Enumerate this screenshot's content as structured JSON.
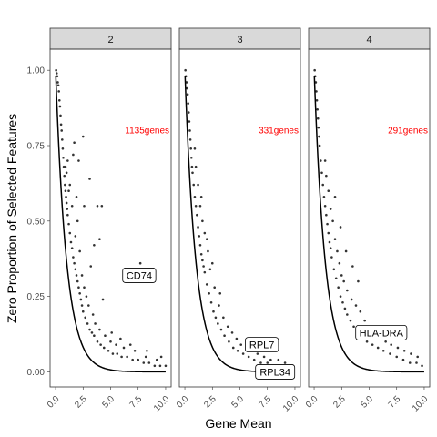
{
  "chart_data": {
    "type": "scatter",
    "xlabel": "Gene Mean",
    "ylabel": "Zero Proportion of Selected Features",
    "xlim": [
      -0.5,
      10.5
    ],
    "ylim": [
      -0.05,
      1.07
    ],
    "x_ticks": [
      0.0,
      2.5,
      5.0,
      7.5,
      10.0
    ],
    "x_tick_labels": [
      "0.0",
      "2.5",
      "5.0",
      "7.5",
      "10.0"
    ],
    "y_ticks": [
      0.0,
      0.25,
      0.5,
      0.75,
      1.0
    ],
    "y_tick_labels": [
      "0.00",
      "0.25",
      "0.50",
      "0.75",
      "1.00"
    ],
    "grid": false,
    "curve": "expected zero proportion exp(-mean)",
    "colors": {
      "points": "#333333",
      "curve": "#000000",
      "gene_count": "#ff0000",
      "strip": "#d9d9d9"
    },
    "panels": [
      {
        "strip": "2",
        "gene_count": "1135genes",
        "labels": [
          {
            "text": "CD74",
            "x": 7.6,
            "y": 0.32
          }
        ],
        "points": [
          [
            0.05,
            1.0
          ],
          [
            0.1,
            0.99
          ],
          [
            0.15,
            0.98
          ],
          [
            0.2,
            0.96
          ],
          [
            0.25,
            0.95
          ],
          [
            0.3,
            0.93
          ],
          [
            0.35,
            0.9
          ],
          [
            0.4,
            0.88
          ],
          [
            0.45,
            0.85
          ],
          [
            0.5,
            0.82
          ],
          [
            0.55,
            0.8
          ],
          [
            0.6,
            0.77
          ],
          [
            0.65,
            0.74
          ],
          [
            0.7,
            0.71
          ],
          [
            0.75,
            0.68
          ],
          [
            0.8,
            0.65
          ],
          [
            0.85,
            0.62
          ],
          [
            0.9,
            0.6
          ],
          [
            0.95,
            0.58
          ],
          [
            1.0,
            0.56
          ],
          [
            1.05,
            0.54
          ],
          [
            1.1,
            0.52
          ],
          [
            1.2,
            0.49
          ],
          [
            1.3,
            0.46
          ],
          [
            1.4,
            0.43
          ],
          [
            1.5,
            0.41
          ],
          [
            1.6,
            0.38
          ],
          [
            1.7,
            0.36
          ],
          [
            1.8,
            0.34
          ],
          [
            1.9,
            0.32
          ],
          [
            2.0,
            0.3
          ],
          [
            2.1,
            0.28
          ],
          [
            2.2,
            0.26
          ],
          [
            2.3,
            0.24
          ],
          [
            2.4,
            0.22
          ],
          [
            2.5,
            0.2
          ],
          [
            2.7,
            0.18
          ],
          [
            2.9,
            0.16
          ],
          [
            3.1,
            0.14
          ],
          [
            3.3,
            0.13
          ],
          [
            3.5,
            0.12
          ],
          [
            3.8,
            0.1
          ],
          [
            4.1,
            0.09
          ],
          [
            4.4,
            0.08
          ],
          [
            4.8,
            0.07
          ],
          [
            5.2,
            0.06
          ],
          [
            5.6,
            0.06
          ],
          [
            6.0,
            0.05
          ],
          [
            6.5,
            0.05
          ],
          [
            7.0,
            0.04
          ],
          [
            7.5,
            0.04
          ],
          [
            8.0,
            0.03
          ],
          [
            8.5,
            0.03
          ],
          [
            9.0,
            0.02
          ],
          [
            9.5,
            0.02
          ],
          [
            1.0,
            0.66
          ],
          [
            1.2,
            0.6
          ],
          [
            1.5,
            0.55
          ],
          [
            1.1,
            0.7
          ],
          [
            1.8,
            0.45
          ],
          [
            2.2,
            0.4
          ],
          [
            2.0,
            0.5
          ],
          [
            2.6,
            0.28
          ],
          [
            3.0,
            0.22
          ],
          [
            3.4,
            0.19
          ],
          [
            2.4,
            0.32
          ],
          [
            2.8,
            0.25
          ],
          [
            3.6,
            0.16
          ],
          [
            4.0,
            0.14
          ],
          [
            4.5,
            0.12
          ],
          [
            5.0,
            0.1
          ],
          [
            5.5,
            0.09
          ],
          [
            6.2,
            0.08
          ],
          [
            7.2,
            0.07
          ],
          [
            8.2,
            0.05
          ],
          [
            9.2,
            0.04
          ],
          [
            1.6,
            0.72
          ],
          [
            1.7,
            0.76
          ],
          [
            2.1,
            0.7
          ],
          [
            2.6,
            0.55
          ],
          [
            2.5,
            0.78
          ],
          [
            3.1,
            0.64
          ],
          [
            3.8,
            0.55
          ],
          [
            4.2,
            0.55
          ],
          [
            4.0,
            0.44
          ],
          [
            3.2,
            0.35
          ],
          [
            3.5,
            0.42
          ],
          [
            4.3,
            0.24
          ],
          [
            5.1,
            0.13
          ],
          [
            5.9,
            0.11
          ],
          [
            6.8,
            0.09
          ],
          [
            7.7,
            0.36
          ],
          [
            8.3,
            0.07
          ],
          [
            9.6,
            0.05
          ],
          [
            10.0,
            0.02
          ],
          [
            1.3,
            0.62
          ],
          [
            1.9,
            0.58
          ],
          [
            0.9,
            0.68
          ]
        ]
      },
      {
        "strip": "3",
        "gene_count": "331genes",
        "labels": [
          {
            "text": "RPL7",
            "x": 7.0,
            "y": 0.09
          },
          {
            "text": "RPL34",
            "x": 8.2,
            "y": 0.0
          }
        ],
        "points": [
          [
            0.05,
            1.0
          ],
          [
            0.1,
            0.98
          ],
          [
            0.15,
            0.96
          ],
          [
            0.2,
            0.94
          ],
          [
            0.25,
            0.92
          ],
          [
            0.3,
            0.89
          ],
          [
            0.35,
            0.86
          ],
          [
            0.4,
            0.83
          ],
          [
            0.45,
            0.8
          ],
          [
            0.5,
            0.77
          ],
          [
            0.55,
            0.74
          ],
          [
            0.6,
            0.71
          ],
          [
            0.65,
            0.68
          ],
          [
            0.7,
            0.66
          ],
          [
            0.8,
            0.62
          ],
          [
            0.9,
            0.58
          ],
          [
            1.0,
            0.55
          ],
          [
            1.1,
            0.52
          ],
          [
            1.2,
            0.48
          ],
          [
            1.3,
            0.45
          ],
          [
            1.4,
            0.42
          ],
          [
            1.5,
            0.39
          ],
          [
            1.6,
            0.37
          ],
          [
            1.7,
            0.35
          ],
          [
            1.8,
            0.33
          ],
          [
            2.0,
            0.29
          ],
          [
            2.2,
            0.26
          ],
          [
            2.4,
            0.23
          ],
          [
            2.6,
            0.2
          ],
          [
            2.8,
            0.18
          ],
          [
            3.0,
            0.16
          ],
          [
            3.3,
            0.14
          ],
          [
            3.6,
            0.12
          ],
          [
            4.0,
            0.1
          ],
          [
            4.4,
            0.08
          ],
          [
            4.8,
            0.07
          ],
          [
            5.3,
            0.06
          ],
          [
            5.8,
            0.05
          ],
          [
            6.3,
            0.04
          ],
          [
            6.9,
            0.03
          ],
          [
            7.5,
            0.03
          ],
          [
            8.2,
            0.02
          ],
          [
            8.8,
            0.01
          ],
          [
            1.0,
            0.68
          ],
          [
            1.2,
            0.62
          ],
          [
            1.4,
            0.55
          ],
          [
            1.6,
            0.5
          ],
          [
            1.8,
            0.46
          ],
          [
            2.1,
            0.4
          ],
          [
            2.3,
            0.34
          ],
          [
            2.7,
            0.28
          ],
          [
            3.1,
            0.22
          ],
          [
            3.5,
            0.18
          ],
          [
            3.9,
            0.15
          ],
          [
            4.3,
            0.13
          ],
          [
            4.7,
            0.11
          ],
          [
            5.1,
            0.09
          ],
          [
            5.6,
            0.08
          ],
          [
            6.1,
            0.07
          ],
          [
            6.6,
            0.06
          ],
          [
            7.2,
            0.05
          ],
          [
            7.8,
            0.04
          ],
          [
            8.5,
            0.04
          ],
          [
            9.1,
            0.03
          ],
          [
            9.6,
            0.02
          ],
          [
            1.5,
            0.58
          ],
          [
            2.0,
            0.44
          ],
          [
            2.5,
            0.36
          ],
          [
            3.2,
            0.26
          ],
          [
            0.9,
            0.74
          ]
        ]
      },
      {
        "strip": "4",
        "gene_count": "291genes",
        "labels": [
          {
            "text": "HLA-DRA",
            "x": 6.1,
            "y": 0.13
          }
        ],
        "points": [
          [
            0.05,
            1.0
          ],
          [
            0.1,
            0.98
          ],
          [
            0.15,
            0.96
          ],
          [
            0.2,
            0.93
          ],
          [
            0.25,
            0.9
          ],
          [
            0.3,
            0.87
          ],
          [
            0.35,
            0.84
          ],
          [
            0.4,
            0.81
          ],
          [
            0.45,
            0.78
          ],
          [
            0.5,
            0.75
          ],
          [
            0.6,
            0.7
          ],
          [
            0.7,
            0.66
          ],
          [
            0.8,
            0.62
          ],
          [
            0.9,
            0.58
          ],
          [
            1.0,
            0.55
          ],
          [
            1.1,
            0.52
          ],
          [
            1.2,
            0.49
          ],
          [
            1.3,
            0.46
          ],
          [
            1.4,
            0.43
          ],
          [
            1.5,
            0.41
          ],
          [
            1.6,
            0.38
          ],
          [
            1.8,
            0.34
          ],
          [
            2.0,
            0.31
          ],
          [
            2.2,
            0.28
          ],
          [
            2.4,
            0.25
          ],
          [
            2.6,
            0.23
          ],
          [
            2.8,
            0.21
          ],
          [
            3.0,
            0.19
          ],
          [
            3.3,
            0.17
          ],
          [
            3.6,
            0.15
          ],
          [
            4.0,
            0.13
          ],
          [
            4.4,
            0.11
          ],
          [
            4.8,
            0.1
          ],
          [
            5.3,
            0.09
          ],
          [
            5.8,
            0.08
          ],
          [
            6.3,
            0.07
          ],
          [
            6.9,
            0.06
          ],
          [
            7.5,
            0.05
          ],
          [
            8.1,
            0.04
          ],
          [
            8.7,
            0.03
          ],
          [
            9.3,
            0.03
          ],
          [
            9.8,
            0.02
          ],
          [
            1.1,
            0.65
          ],
          [
            1.3,
            0.6
          ],
          [
            1.5,
            0.54
          ],
          [
            1.7,
            0.5
          ],
          [
            1.9,
            0.44
          ],
          [
            2.1,
            0.4
          ],
          [
            2.3,
            0.36
          ],
          [
            2.5,
            0.32
          ],
          [
            2.7,
            0.3
          ],
          [
            3.0,
            0.27
          ],
          [
            3.4,
            0.24
          ],
          [
            3.8,
            0.22
          ],
          [
            4.2,
            0.2
          ],
          [
            4.6,
            0.17
          ],
          [
            5.0,
            0.15
          ],
          [
            5.5,
            0.13
          ],
          [
            6.0,
            0.12
          ],
          [
            6.5,
            0.1
          ],
          [
            7.0,
            0.09
          ],
          [
            7.6,
            0.08
          ],
          [
            8.2,
            0.07
          ],
          [
            8.8,
            0.06
          ],
          [
            9.4,
            0.05
          ],
          [
            1.9,
            0.58
          ],
          [
            2.4,
            0.48
          ],
          [
            2.9,
            0.4
          ],
          [
            3.5,
            0.35
          ],
          [
            4.0,
            0.3
          ],
          [
            1.0,
            0.7
          ]
        ]
      }
    ]
  }
}
